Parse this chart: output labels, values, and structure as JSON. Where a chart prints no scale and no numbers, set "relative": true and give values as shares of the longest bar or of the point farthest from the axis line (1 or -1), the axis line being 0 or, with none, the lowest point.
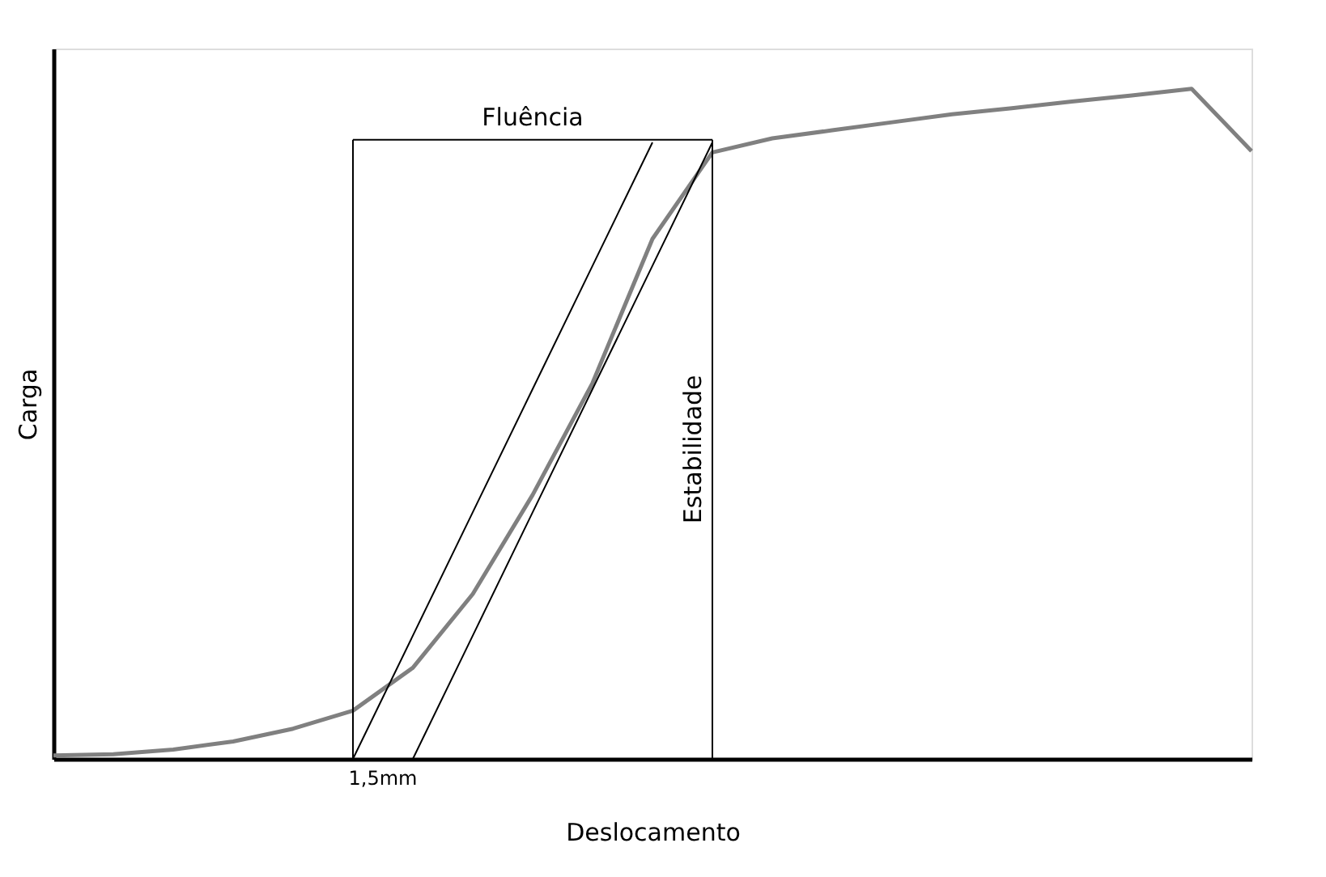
{
  "chart_data": {
    "type": "line",
    "relative": true,
    "xlabel": "Deslocamento",
    "ylabel": "Carga",
    "marker": "none",
    "line_style": "solid",
    "categories": [
      null,
      null,
      null,
      null,
      null,
      null,
      null,
      null,
      null,
      null,
      null,
      null,
      null,
      null,
      null,
      null,
      null,
      null,
      null,
      null,
      null
    ],
    "series": [
      {
        "color": "#808080",
        "values": [
          0.005,
          0.007,
          0.014,
          0.026,
          0.045,
          0.072,
          0.136,
          0.246,
          0.394,
          0.561,
          0.776,
          0.905,
          0.926,
          0.938,
          0.95,
          0.962,
          0.971,
          0.981,
          0.99,
          1.0,
          0.907
        ]
      },
      {
        "color": "#000000",
        "values": [
          null,
          null,
          null,
          null,
          null,
          0,
          0.184,
          0.368,
          0.552,
          0.736,
          0.92,
          null,
          null,
          null,
          null,
          null,
          null,
          null,
          null,
          null,
          null
        ]
      },
      {
        "color": "#000000",
        "values": [
          null,
          null,
          null,
          null,
          null,
          null,
          0,
          0.184,
          0.368,
          0.552,
          0.736,
          0.92,
          null,
          null,
          null,
          null,
          null,
          null,
          null,
          null,
          null
        ]
      },
      {
        "color": "#000000",
        "values": [
          null,
          null,
          null,
          null,
          null,
          0.924,
          0.924,
          0.924,
          0.924,
          0.924,
          0.924,
          0.924,
          null,
          null,
          null,
          null,
          null,
          null,
          null,
          null,
          null
        ]
      }
    ],
    "annotations": [
      "Fluência",
      "Estabilidade",
      "1,5mm"
    ]
  }
}
